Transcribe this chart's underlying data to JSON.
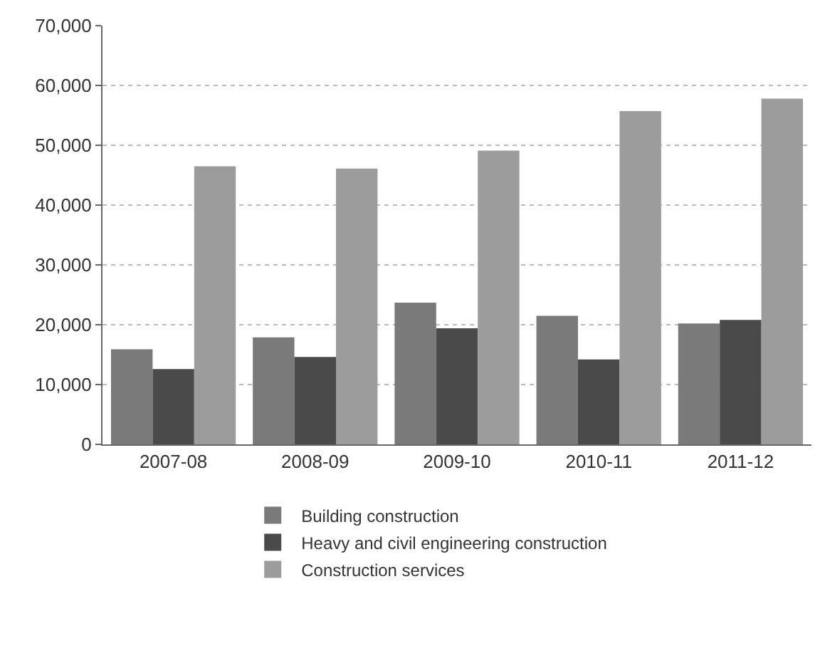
{
  "chart_data": {
    "type": "bar",
    "categories": [
      "2007-08",
      "2008-09",
      "2009-10",
      "2010-11",
      "2011-12"
    ],
    "series": [
      {
        "name": "Building construction",
        "color": "#7a7a7a",
        "values": [
          15900,
          17900,
          23700,
          21500,
          20200
        ]
      },
      {
        "name": "Heavy and civil engineering construction",
        "color": "#4a4a4a",
        "values": [
          12600,
          14600,
          19400,
          14200,
          20800
        ]
      },
      {
        "name": "Construction services",
        "color": "#9c9c9c",
        "values": [
          46500,
          46100,
          49100,
          55700,
          57800
        ]
      }
    ],
    "ylim": [
      0,
      70000
    ],
    "yticks": [
      {
        "value": 0,
        "label": "0"
      },
      {
        "value": 10000,
        "label": "10,000"
      },
      {
        "value": 20000,
        "label": "20,000"
      },
      {
        "value": 30000,
        "label": "30,000"
      },
      {
        "value": 40000,
        "label": "40,000"
      },
      {
        "value": 50000,
        "label": "50,000"
      },
      {
        "value": 60000,
        "label": "60,000"
      },
      {
        "value": 70000,
        "label": "70,000"
      }
    ],
    "grid": "y",
    "legend": "bottom"
  }
}
